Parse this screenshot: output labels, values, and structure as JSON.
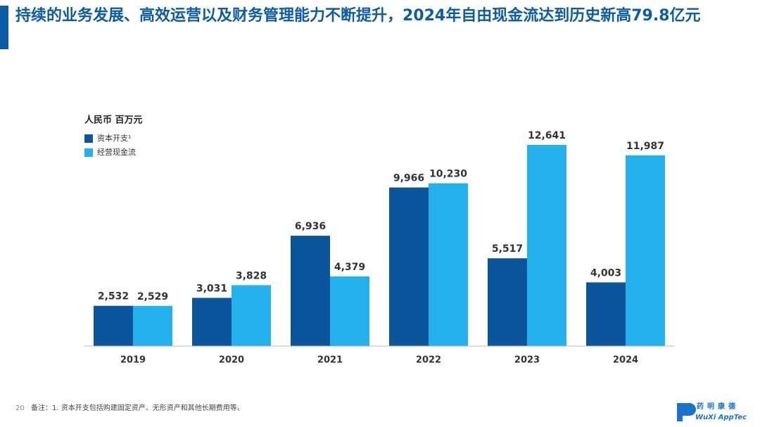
{
  "chart_data": {
    "type": "bar",
    "title": "持续的业务发展、高效运营以及财务管理能力不断提升，2024年自由现金流达到历史新高79.8亿元",
    "unit_label": "人民币 百万元",
    "categories": [
      "2019",
      "2020",
      "2021",
      "2022",
      "2023",
      "2024"
    ],
    "series": [
      {
        "name": "资本开支¹",
        "color": "#0b559c",
        "values": [
          2532,
          3031,
          6936,
          9966,
          5517,
          4003
        ],
        "value_labels": [
          "2,532",
          "3,031",
          "6,936",
          "9,966",
          "5,517",
          "4,003"
        ]
      },
      {
        "name": "经营现金流",
        "color": "#25b1ee",
        "values": [
          2529,
          3828,
          4379,
          10230,
          12641,
          11987
        ],
        "value_labels": [
          "2,529",
          "3,828",
          "4,379",
          "10,230",
          "12,641",
          "11,987"
        ]
      }
    ],
    "legend": "top-left",
    "footnote": "备注：1. 资本开支包括购建固定资产、无形资产和其他长期费用等。",
    "page_number": "20",
    "logo": {
      "chinese": "药明康德",
      "english": "WuXi AppTec"
    }
  }
}
